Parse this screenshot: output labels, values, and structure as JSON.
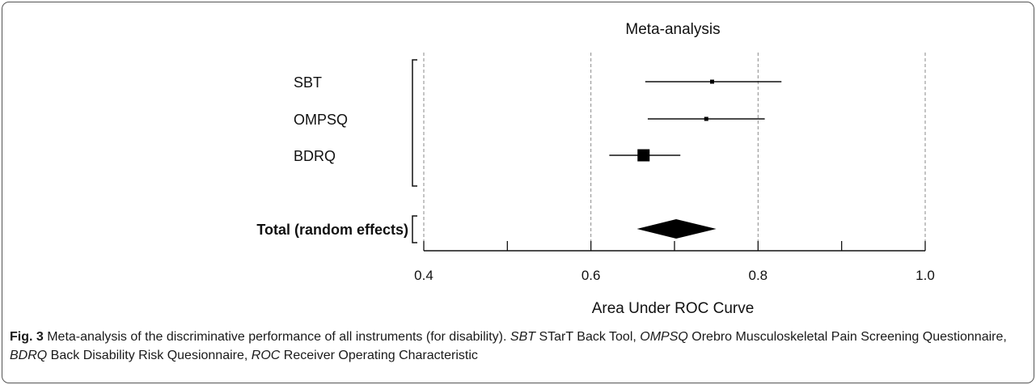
{
  "chart_data": {
    "type": "forest",
    "title": "Meta-analysis",
    "xlabel": "Area Under ROC Curve",
    "xlim": [
      0.4,
      1.0
    ],
    "xticks": [
      "0.4",
      "0.6",
      "0.8",
      "1.0"
    ],
    "reference_lines": [
      0.4,
      0.6,
      0.8,
      1.0
    ],
    "studies": [
      {
        "label": "SBT",
        "auc": 0.745,
        "ci": [
          0.665,
          0.828
        ],
        "weight": "small"
      },
      {
        "label": "OMPSQ",
        "auc": 0.738,
        "ci": [
          0.668,
          0.808
        ],
        "weight": "small"
      },
      {
        "label": "BDRQ",
        "auc": 0.663,
        "ci": [
          0.622,
          0.707
        ],
        "weight": "large"
      }
    ],
    "pooled": {
      "label": "Total (random effects)",
      "auc": 0.702,
      "ci": [
        0.655,
        0.75
      ]
    },
    "grid": false
  },
  "caption": {
    "fig_label": "Fig. 3",
    "parts": [
      {
        "text": " Meta-analysis of the discriminative performance of all instruments (for disability). ",
        "italic": false
      },
      {
        "text": "SBT",
        "italic": true
      },
      {
        "text": " STarT Back Tool, ",
        "italic": false
      },
      {
        "text": "OMPSQ",
        "italic": true
      },
      {
        "text": " Orebro Musculoskeletal Pain Screening Questionnaire, ",
        "italic": false
      },
      {
        "text": "BDRQ",
        "italic": true
      },
      {
        "text": " Back Disability Risk Quesionnaire, ",
        "italic": false
      },
      {
        "text": "ROC",
        "italic": true
      },
      {
        "text": " Receiver Operating Characteristic",
        "italic": false
      }
    ]
  }
}
